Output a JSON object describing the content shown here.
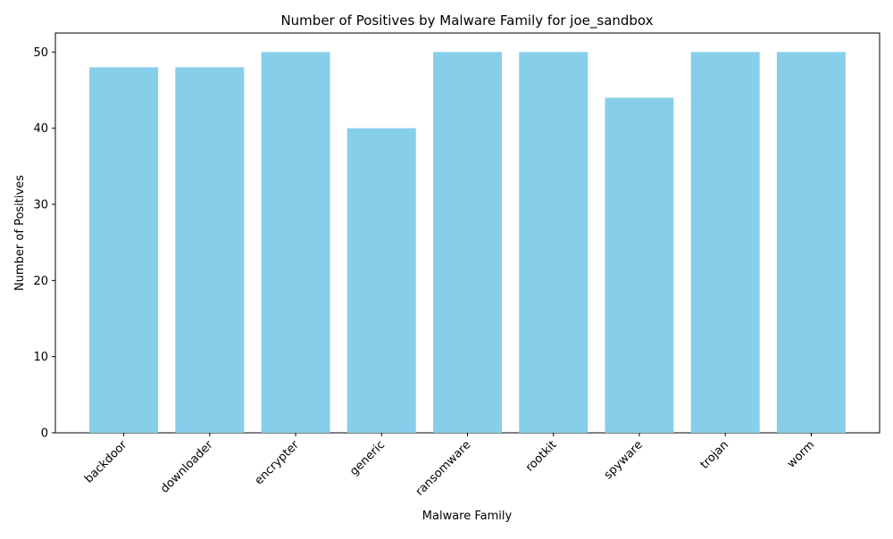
{
  "chart_data": {
    "type": "bar",
    "title": "Number of Positives by Malware Family for joe_sandbox",
    "xlabel": "Malware Family",
    "ylabel": "Number of Positives",
    "categories": [
      "backdoor",
      "downloader",
      "encrypter",
      "generic",
      "ransomware",
      "rootkit",
      "spyware",
      "trojan",
      "worm"
    ],
    "values": [
      48,
      48,
      50,
      40,
      50,
      50,
      44,
      50,
      50
    ],
    "yticks": [
      0,
      10,
      20,
      30,
      40,
      50
    ],
    "ylim": [
      0,
      52.5
    ],
    "grid": false,
    "legend": "none",
    "bar_color": "#87CEEB",
    "xtick_rotation": 45
  }
}
